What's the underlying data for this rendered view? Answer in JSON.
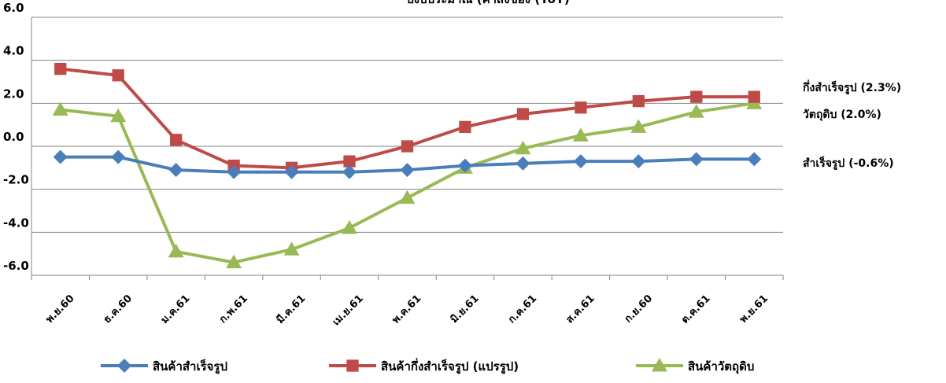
{
  "chart_data": {
    "type": "line",
    "title": "ปีงบประมาณ (ค่าสิ่งของ (YoY)",
    "categories": [
      "พ.ย.60",
      "ธ.ค.60",
      "ม.ค.61",
      "ก.พ.61",
      "มี.ค.61",
      "เม.ย.61",
      "พ.ค.61",
      "มิ.ย.61",
      "ก.ค.61",
      "ส.ค.61",
      "ก.ย.60",
      "ต.ค.61",
      "พ.ย.61"
    ],
    "ylim": [
      -6,
      6
    ],
    "yticks": [
      "6.0",
      "4.0",
      "2.0",
      "0.0",
      "-2.0",
      "-4.0",
      "-6.0"
    ],
    "ytick_values": [
      6,
      4,
      2,
      0,
      -2,
      -4,
      -6
    ],
    "grid": true,
    "legend_position": "bottom",
    "series": [
      {
        "name": "สินค้าสำเร็จรูป",
        "color": "#4a7ebb",
        "marker": "diamond",
        "values": [
          -0.5,
          -0.5,
          -1.1,
          -1.2,
          -1.2,
          -1.2,
          -1.1,
          -0.9,
          -0.8,
          -0.7,
          -0.7,
          -0.6,
          -0.6
        ],
        "end_label": "สำเร็จรูป (-0.6%)"
      },
      {
        "name": "สินค้ากึ่งสำเร็จรูป  (แปรรูป)",
        "color": "#be4b48",
        "marker": "square",
        "values": [
          3.6,
          3.3,
          0.3,
          -0.9,
          -1.0,
          -0.7,
          0.0,
          0.9,
          1.5,
          1.8,
          2.1,
          2.3,
          2.3
        ],
        "end_label": "กึ่งสำเร็จรูป (2.3%)"
      },
      {
        "name": "สินค้าวัตถุดิบ",
        "color": "#98b954",
        "marker": "triangle",
        "values": [
          1.7,
          1.4,
          -4.9,
          -5.4,
          -4.8,
          -3.8,
          -2.4,
          -1.0,
          -0.1,
          0.5,
          0.9,
          1.6,
          2.0
        ],
        "end_label": "วัตถุดิบ (2.0%)"
      }
    ]
  },
  "colors": {
    "grid": "#868686",
    "axis": "#868686"
  }
}
